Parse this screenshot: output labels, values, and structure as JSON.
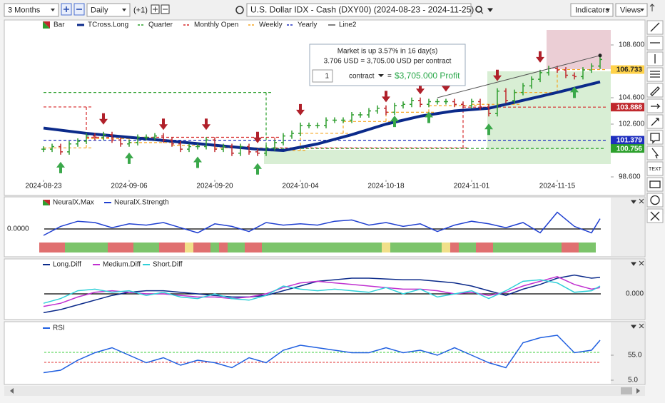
{
  "toolbar": {
    "range": "3 Months",
    "interval": "Daily",
    "offset": "(+1)",
    "title": "U.S. Dollar IDX - Cash (DXY00) (2024-08-23 - 2024-11-25)",
    "indicators": "Indicators",
    "views": "Views"
  },
  "main": {
    "bar": {
      "name": "Bar",
      "up_color": "#2e9e2e",
      "down_color": "#c0282d",
      "closes": [
        100.7,
        100.9,
        100.5,
        101.1,
        101.3,
        101.7,
        101.6,
        101.8,
        101.4,
        101.1,
        101.2,
        101.6,
        101.6,
        101.7,
        101.4,
        101.1,
        100.7,
        100.9,
        100.9,
        101.4,
        100.7,
        100.9,
        100.4,
        100.9,
        100.5,
        100.4,
        100.8,
        101.2,
        101.7,
        101.9,
        102.5,
        102.5,
        102.5,
        102.9,
        102.9,
        102.9,
        103.3,
        103.3,
        103.6,
        103.8,
        103.5,
        104.0,
        104.1,
        104.4,
        104.1,
        104.3,
        104.3,
        104.3,
        104.1,
        104.0,
        104.3,
        103.9,
        103.4,
        105.1,
        104.4,
        105.0,
        105.5,
        106.0,
        106.5,
        106.8,
        106.7,
        106.3,
        106.2,
        106.7,
        107.0,
        107.5
      ]
    },
    "tcross": {
      "name": "TCross.Long",
      "color": "#0b2a8a",
      "x": [
        0,
        5,
        10,
        15,
        20,
        25,
        28,
        32,
        36,
        40,
        44,
        48,
        52,
        56,
        60,
        65
      ],
      "values": [
        102.3,
        101.9,
        101.6,
        101.3,
        101.0,
        100.7,
        100.6,
        101.1,
        101.8,
        102.6,
        103.2,
        103.6,
        103.8,
        104.4,
        105.0,
        105.8
      ]
    },
    "levels": [
      {
        "name": "Quarter",
        "color": "#2ca02c",
        "segments": [
          [
            0,
            26,
            105.0
          ],
          [
            26,
            65,
            100.756
          ]
        ]
      },
      {
        "name": "Monthly Open",
        "color": "#d62728",
        "segments": [
          [
            0,
            5,
            103.9
          ],
          [
            5,
            27,
            101.6
          ],
          [
            27,
            49,
            100.8
          ],
          [
            49,
            65,
            103.888
          ]
        ]
      },
      {
        "name": "Weekly",
        "color": "#f5a623",
        "segments": [
          [
            0,
            5,
            100.8
          ],
          [
            5,
            10,
            101.5
          ],
          [
            10,
            15,
            101.2
          ],
          [
            15,
            20,
            101.0
          ],
          [
            20,
            25,
            100.8
          ],
          [
            25,
            30,
            100.6
          ],
          [
            30,
            35,
            101.9
          ],
          [
            35,
            40,
            102.8
          ],
          [
            40,
            45,
            103.5
          ],
          [
            45,
            50,
            104.0
          ],
          [
            50,
            55,
            104.1
          ],
          [
            55,
            60,
            105.0
          ],
          [
            60,
            65,
            106.733
          ]
        ]
      },
      {
        "name": "Yearly",
        "color": "#1f2fbf",
        "segments": [
          [
            0,
            65,
            101.379
          ]
        ]
      }
    ],
    "line2": {
      "name": "Line2",
      "color": "#555555",
      "from": [
        46,
        104.6
      ],
      "to": [
        65,
        107.8
      ]
    },
    "signals": {
      "down": [
        7,
        14,
        19,
        25,
        30,
        40,
        44,
        47,
        53,
        58
      ],
      "up": [
        2,
        10,
        18,
        25,
        41,
        45,
        52,
        62
      ]
    },
    "yticks": [
      {
        "value": 108.6,
        "label": "108.600"
      },
      {
        "value": 104.6,
        "label": "104.600"
      },
      {
        "value": 102.6,
        "label": "102.600"
      },
      {
        "value": 98.6,
        "label": "98.600"
      }
    ],
    "price_tags": [
      {
        "value": 106.733,
        "label": "106.733",
        "color": "#ffd24a"
      },
      {
        "value": 103.888,
        "label": "103.888",
        "color": "#c0282d"
      },
      {
        "value": 101.379,
        "label": "101.379",
        "color": "#1f2fbf"
      },
      {
        "value": 100.756,
        "label": "100.756",
        "color": "#2ca02c"
      }
    ],
    "dates": [
      {
        "label": "2024-08-23",
        "index": 0
      },
      {
        "label": "2024-09-06",
        "index": 10
      },
      {
        "label": "2024-09-20",
        "index": 20
      },
      {
        "label": "2024-10-04",
        "index": 30
      },
      {
        "label": "2024-10-18",
        "index": 40
      },
      {
        "label": "2024-11-01",
        "index": 50
      },
      {
        "label": "2024-11-15",
        "index": 60
      }
    ],
    "tooltip": {
      "line1": "Market is up 3.57% in 16 day(s)",
      "line2": "3.706 USD = 3,705.00 USD per contract",
      "quantity": "1",
      "unit": "contract",
      "equals": "=",
      "profit": "$3,705.000 Profit"
    }
  },
  "neural": {
    "max_name": "NeuralX.Max",
    "strength_name": "NeuralX.Strength",
    "color": "#1f3fd0",
    "zero_label": "0.0000",
    "x": [
      0,
      2,
      4,
      6,
      8,
      10,
      12,
      14,
      16,
      18,
      20,
      22,
      24,
      26,
      28,
      30,
      32,
      34,
      36,
      38,
      40,
      42,
      44,
      46,
      48,
      50,
      52,
      54,
      56,
      58,
      60,
      62,
      64,
      65
    ],
    "values": [
      -0.5,
      0.2,
      0.6,
      0.5,
      0.1,
      0.4,
      0.3,
      0.5,
      0.1,
      -0.3,
      0.4,
      0.2,
      -0.2,
      0.5,
      0.3,
      0.4,
      0.3,
      0.6,
      0.7,
      0.3,
      0.5,
      0.2,
      0.4,
      -0.2,
      0.3,
      0.6,
      0.4,
      0.1,
      0.5,
      -0.3,
      1.3,
      0.2,
      -0.3,
      0.8
    ],
    "strip": [
      [
        0,
        3,
        "#e07070"
      ],
      [
        3,
        8,
        "#7cc46b"
      ],
      [
        8,
        11,
        "#e07070"
      ],
      [
        11,
        14,
        "#7cc46b"
      ],
      [
        14,
        17,
        "#e07070"
      ],
      [
        17,
        18,
        "#f1e08a"
      ],
      [
        18,
        20,
        "#e07070"
      ],
      [
        20,
        21,
        "#7cc46b"
      ],
      [
        21,
        22,
        "#e07070"
      ],
      [
        22,
        24,
        "#7cc46b"
      ],
      [
        24,
        26,
        "#e07070"
      ],
      [
        26,
        40,
        "#7cc46b"
      ],
      [
        40,
        41,
        "#f1e08a"
      ],
      [
        41,
        47,
        "#7cc46b"
      ],
      [
        47,
        48,
        "#f1e08a"
      ],
      [
        48,
        49,
        "#e07070"
      ],
      [
        49,
        51,
        "#7cc46b"
      ],
      [
        51,
        53,
        "#e07070"
      ],
      [
        53,
        61,
        "#7cc46b"
      ],
      [
        61,
        63,
        "#e07070"
      ],
      [
        63,
        65,
        "#7cc46b"
      ]
    ]
  },
  "diff": {
    "zero_label": "0.000",
    "x": [
      0,
      2,
      4,
      6,
      8,
      10,
      12,
      14,
      16,
      18,
      20,
      22,
      24,
      26,
      28,
      30,
      32,
      34,
      36,
      38,
      40,
      42,
      44,
      46,
      48,
      50,
      52,
      54,
      56,
      58,
      60,
      62,
      64,
      65
    ],
    "series": [
      {
        "name": "Long.Diff",
        "color": "#0b2a8a",
        "values": [
          -1.2,
          -1.0,
          -0.7,
          -0.4,
          -0.1,
          0.1,
          0.2,
          0.2,
          0.1,
          0.0,
          -0.1,
          -0.2,
          -0.2,
          -0.1,
          0.2,
          0.5,
          0.8,
          0.9,
          1.0,
          1.0,
          0.95,
          0.9,
          0.9,
          0.8,
          0.7,
          0.5,
          0.2,
          -0.1,
          0.3,
          0.6,
          1.0,
          1.2,
          1.0,
          1.05
        ]
      },
      {
        "name": "Medium.Diff",
        "color": "#c030d0",
        "values": [
          -0.8,
          -0.6,
          -0.2,
          0.1,
          0.2,
          0.1,
          0.0,
          0.0,
          -0.1,
          -0.2,
          -0.2,
          -0.3,
          -0.2,
          0.0,
          0.4,
          0.7,
          0.8,
          0.7,
          0.6,
          0.5,
          0.4,
          0.3,
          0.3,
          0.2,
          0.0,
          0.1,
          -0.1,
          0.1,
          0.5,
          0.8,
          1.1,
          0.6,
          0.3,
          0.4
        ]
      },
      {
        "name": "Short.Diff",
        "color": "#30d0d8",
        "values": [
          -0.6,
          -0.3,
          0.2,
          0.3,
          0.1,
          0.2,
          -0.1,
          0.1,
          -0.2,
          -0.3,
          0.0,
          -0.3,
          -0.4,
          -0.1,
          0.5,
          0.3,
          0.2,
          0.3,
          0.2,
          0.1,
          0.4,
          0.0,
          0.3,
          -0.2,
          0.0,
          0.2,
          -0.3,
          0.2,
          0.8,
          0.9,
          0.7,
          0.1,
          0.2,
          0.5
        ]
      }
    ]
  },
  "rsi": {
    "name": "RSI",
    "color": "#1f5fe0",
    "x": [
      0,
      2,
      4,
      6,
      8,
      10,
      12,
      14,
      16,
      18,
      20,
      22,
      24,
      26,
      28,
      30,
      32,
      34,
      36,
      38,
      40,
      42,
      44,
      46,
      48,
      50,
      52,
      54,
      56,
      58,
      60,
      62,
      64,
      65
    ],
    "values": [
      20,
      25,
      45,
      60,
      70,
      55,
      40,
      50,
      35,
      45,
      40,
      30,
      50,
      40,
      65,
      75,
      70,
      65,
      60,
      60,
      70,
      60,
      65,
      55,
      70,
      55,
      40,
      30,
      80,
      90,
      95,
      60,
      65,
      85
    ],
    "levels": [
      {
        "value": 60.7,
        "color": "#3ccf3c"
      },
      {
        "value": 40.7,
        "color": "#e03030"
      }
    ],
    "yticks": [
      {
        "value": 55,
        "label": "55.0"
      },
      {
        "value": 5,
        "label": "5.0"
      }
    ]
  },
  "side_toolbar": {
    "text_tool": "TEXT"
  }
}
